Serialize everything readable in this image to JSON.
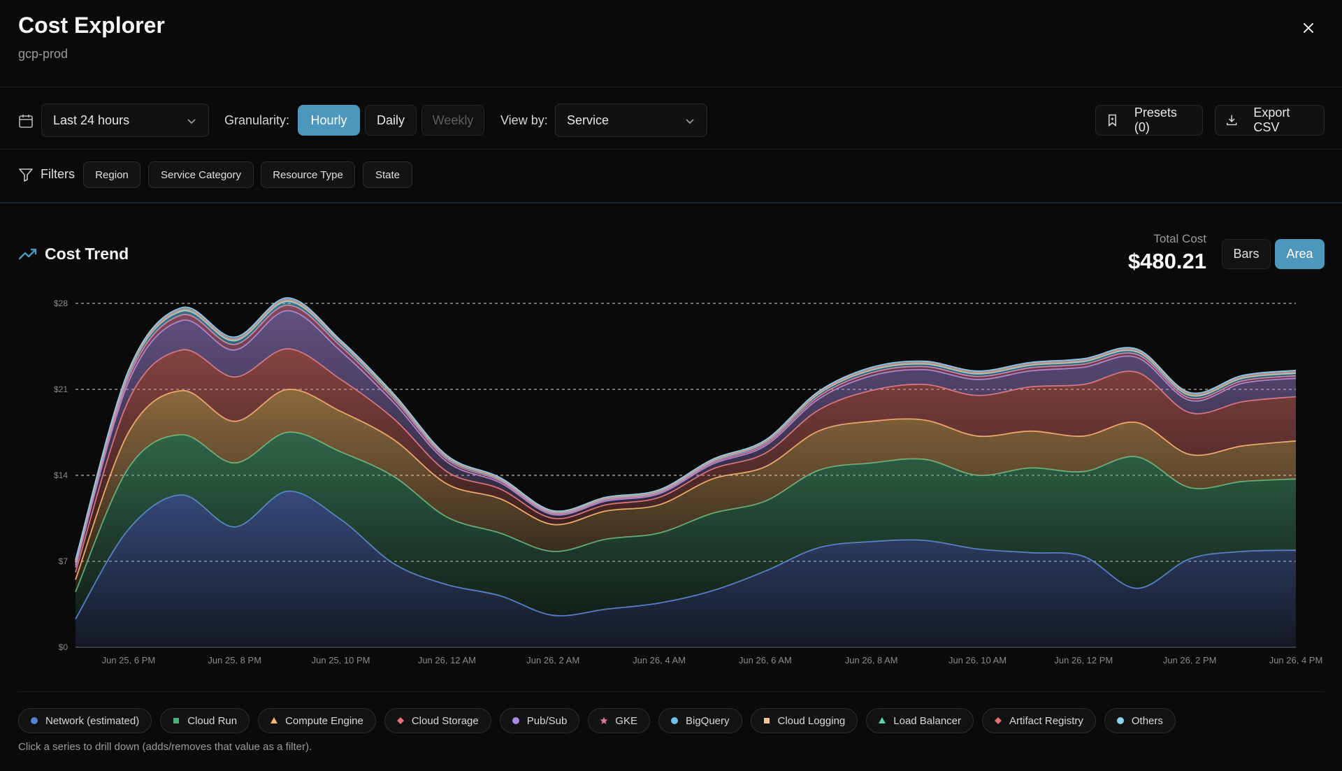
{
  "header": {
    "title": "Cost Explorer",
    "subtitle": "gcp-prod"
  },
  "toolbar": {
    "date_range": "Last 24 hours",
    "granularity_label": "Granularity:",
    "granularity_options": [
      "Hourly",
      "Daily",
      "Weekly"
    ],
    "granularity_selected": "Hourly",
    "view_by_label": "View by:",
    "view_by_value": "Service",
    "presets_label": "Presets (0)",
    "export_label": "Export CSV"
  },
  "filters": {
    "label": "Filters",
    "chips": [
      "Region",
      "Service Category",
      "Resource Type",
      "State"
    ]
  },
  "cost_trend": {
    "title": "Cost Trend",
    "total_label": "Total Cost",
    "total_value": "$480.21",
    "mode_options": [
      "Bars",
      "Area"
    ],
    "mode_selected": "Area"
  },
  "chart_data": {
    "type": "area",
    "stacked": true,
    "x": [
      "Jun 25, 5 PM",
      "Jun 25, 6 PM",
      "Jun 25, 7 PM",
      "Jun 25, 8 PM",
      "Jun 25, 9 PM",
      "Jun 25, 10 PM",
      "Jun 25, 11 PM",
      "Jun 26, 12 AM",
      "Jun 26, 1 AM",
      "Jun 26, 2 AM",
      "Jun 26, 3 AM",
      "Jun 26, 4 AM",
      "Jun 26, 5 AM",
      "Jun 26, 6 AM",
      "Jun 26, 7 AM",
      "Jun 26, 8 AM",
      "Jun 26, 9 AM",
      "Jun 26, 10 AM",
      "Jun 26, 11 AM",
      "Jun 26, 12 PM",
      "Jun 26, 1 PM",
      "Jun 26, 2 PM",
      "Jun 26, 3 PM",
      "Jun 26, 4 PM"
    ],
    "x_tick_labels": [
      "Jun 25, 6 PM",
      "Jun 25, 8 PM",
      "Jun 25, 10 PM",
      "Jun 26, 12 AM",
      "Jun 26, 2 AM",
      "Jun 26, 4 AM",
      "Jun 26, 6 AM",
      "Jun 26, 8 AM",
      "Jun 26, 10 AM",
      "Jun 26, 12 PM",
      "Jun 26, 2 PM",
      "Jun 26, 4 PM"
    ],
    "y_ticks": [
      "$0",
      "$7",
      "$14",
      "$21",
      "$28"
    ],
    "ylim": [
      0,
      28
    ],
    "grid": "horizontal-dashed",
    "series": [
      {
        "name": "Network (estimated)",
        "color": "#5a7fd6",
        "marker": "circle",
        "values": [
          2.3,
          9.6,
          12.4,
          9.8,
          12.7,
          10.4,
          6.8,
          5.1,
          4.2,
          2.6,
          3.1,
          3.6,
          4.6,
          6.2,
          8.1,
          8.6,
          8.7,
          8.0,
          7.7,
          7.4,
          4.8,
          7.2,
          7.8,
          7.9
        ]
      },
      {
        "name": "Cloud Run",
        "color": "#4fb07e",
        "marker": "square",
        "values": [
          2.2,
          5.0,
          4.9,
          5.2,
          4.8,
          5.5,
          7.1,
          5.5,
          5.1,
          5.2,
          5.7,
          5.7,
          6.3,
          5.7,
          6.3,
          6.4,
          6.6,
          6.0,
          6.9,
          6.9,
          10.7,
          5.8,
          5.7,
          5.8
        ]
      },
      {
        "name": "Compute Engine",
        "color": "#f5b76b",
        "marker": "triangle",
        "values": [
          1.0,
          2.9,
          3.6,
          3.4,
          3.5,
          3.3,
          3.0,
          2.7,
          2.8,
          2.2,
          2.3,
          2.3,
          2.8,
          2.8,
          3.2,
          3.4,
          3.2,
          3.2,
          3.0,
          2.9,
          2.8,
          2.7,
          2.9,
          3.1
        ]
      },
      {
        "name": "Cloud Storage",
        "color": "#e8736e",
        "marker": "diamond",
        "values": [
          0.6,
          2.6,
          3.3,
          3.6,
          3.3,
          2.6,
          1.7,
          1.0,
          0.8,
          0.5,
          0.5,
          0.6,
          0.8,
          1.1,
          1.7,
          2.5,
          2.9,
          3.3,
          3.6,
          4.2,
          4.1,
          3.4,
          3.6,
          3.6
        ]
      },
      {
        "name": "Pub/Sub",
        "color": "#a98be0",
        "marker": "circle",
        "values": [
          0.4,
          1.5,
          2.4,
          2.2,
          3.1,
          2.3,
          1.3,
          0.8,
          0.5,
          0.3,
          0.3,
          0.3,
          0.4,
          0.6,
          0.9,
          1.2,
          1.2,
          1.3,
          1.3,
          1.4,
          1.2,
          1.0,
          1.5,
          1.5
        ]
      },
      {
        "name": "GKE",
        "color": "#e07ba0",
        "marker": "star",
        "values": [
          0.2,
          0.35,
          0.45,
          0.45,
          0.45,
          0.4,
          0.3,
          0.2,
          0.15,
          0.1,
          0.1,
          0.1,
          0.12,
          0.15,
          0.2,
          0.25,
          0.25,
          0.25,
          0.25,
          0.25,
          0.25,
          0.2,
          0.2,
          0.2
        ]
      },
      {
        "name": "BigQuery",
        "color": "#6cc3e6",
        "marker": "circle",
        "values": [
          0.2,
          0.3,
          0.3,
          0.3,
          0.3,
          0.25,
          0.2,
          0.15,
          0.12,
          0.1,
          0.1,
          0.1,
          0.12,
          0.15,
          0.2,
          0.2,
          0.2,
          0.2,
          0.2,
          0.2,
          0.2,
          0.2,
          0.2,
          0.2
        ]
      },
      {
        "name": "Cloud Logging",
        "color": "#f2c48d",
        "marker": "square",
        "values": [
          0.05,
          0.06,
          0.06,
          0.06,
          0.06,
          0.05,
          0.05,
          0.04,
          0.04,
          0.03,
          0.03,
          0.03,
          0.04,
          0.04,
          0.05,
          0.05,
          0.05,
          0.05,
          0.05,
          0.05,
          0.05,
          0.05,
          0.05,
          0.05
        ]
      },
      {
        "name": "Load Balancer",
        "color": "#59d1b4",
        "marker": "triangle",
        "values": [
          0.04,
          0.05,
          0.05,
          0.05,
          0.05,
          0.04,
          0.04,
          0.03,
          0.03,
          0.02,
          0.02,
          0.02,
          0.03,
          0.03,
          0.04,
          0.04,
          0.04,
          0.04,
          0.04,
          0.04,
          0.04,
          0.04,
          0.04,
          0.04
        ]
      },
      {
        "name": "Artifact Registry",
        "color": "#e8736e",
        "marker": "diamond",
        "values": [
          0.03,
          0.04,
          0.04,
          0.04,
          0.04,
          0.03,
          0.03,
          0.02,
          0.02,
          0.02,
          0.02,
          0.02,
          0.02,
          0.02,
          0.03,
          0.03,
          0.03,
          0.03,
          0.03,
          0.03,
          0.03,
          0.03,
          0.03,
          0.03
        ]
      },
      {
        "name": "Others",
        "color": "#8fd3f4",
        "marker": "circle",
        "values": [
          0.1,
          0.15,
          0.15,
          0.15,
          0.15,
          0.12,
          0.1,
          0.08,
          0.06,
          0.05,
          0.05,
          0.05,
          0.06,
          0.08,
          0.1,
          0.12,
          0.12,
          0.12,
          0.12,
          0.12,
          0.12,
          0.12,
          0.12,
          0.12
        ]
      }
    ]
  },
  "legend_hint": "Click a series to drill down (adds/removes that value as a filter)."
}
